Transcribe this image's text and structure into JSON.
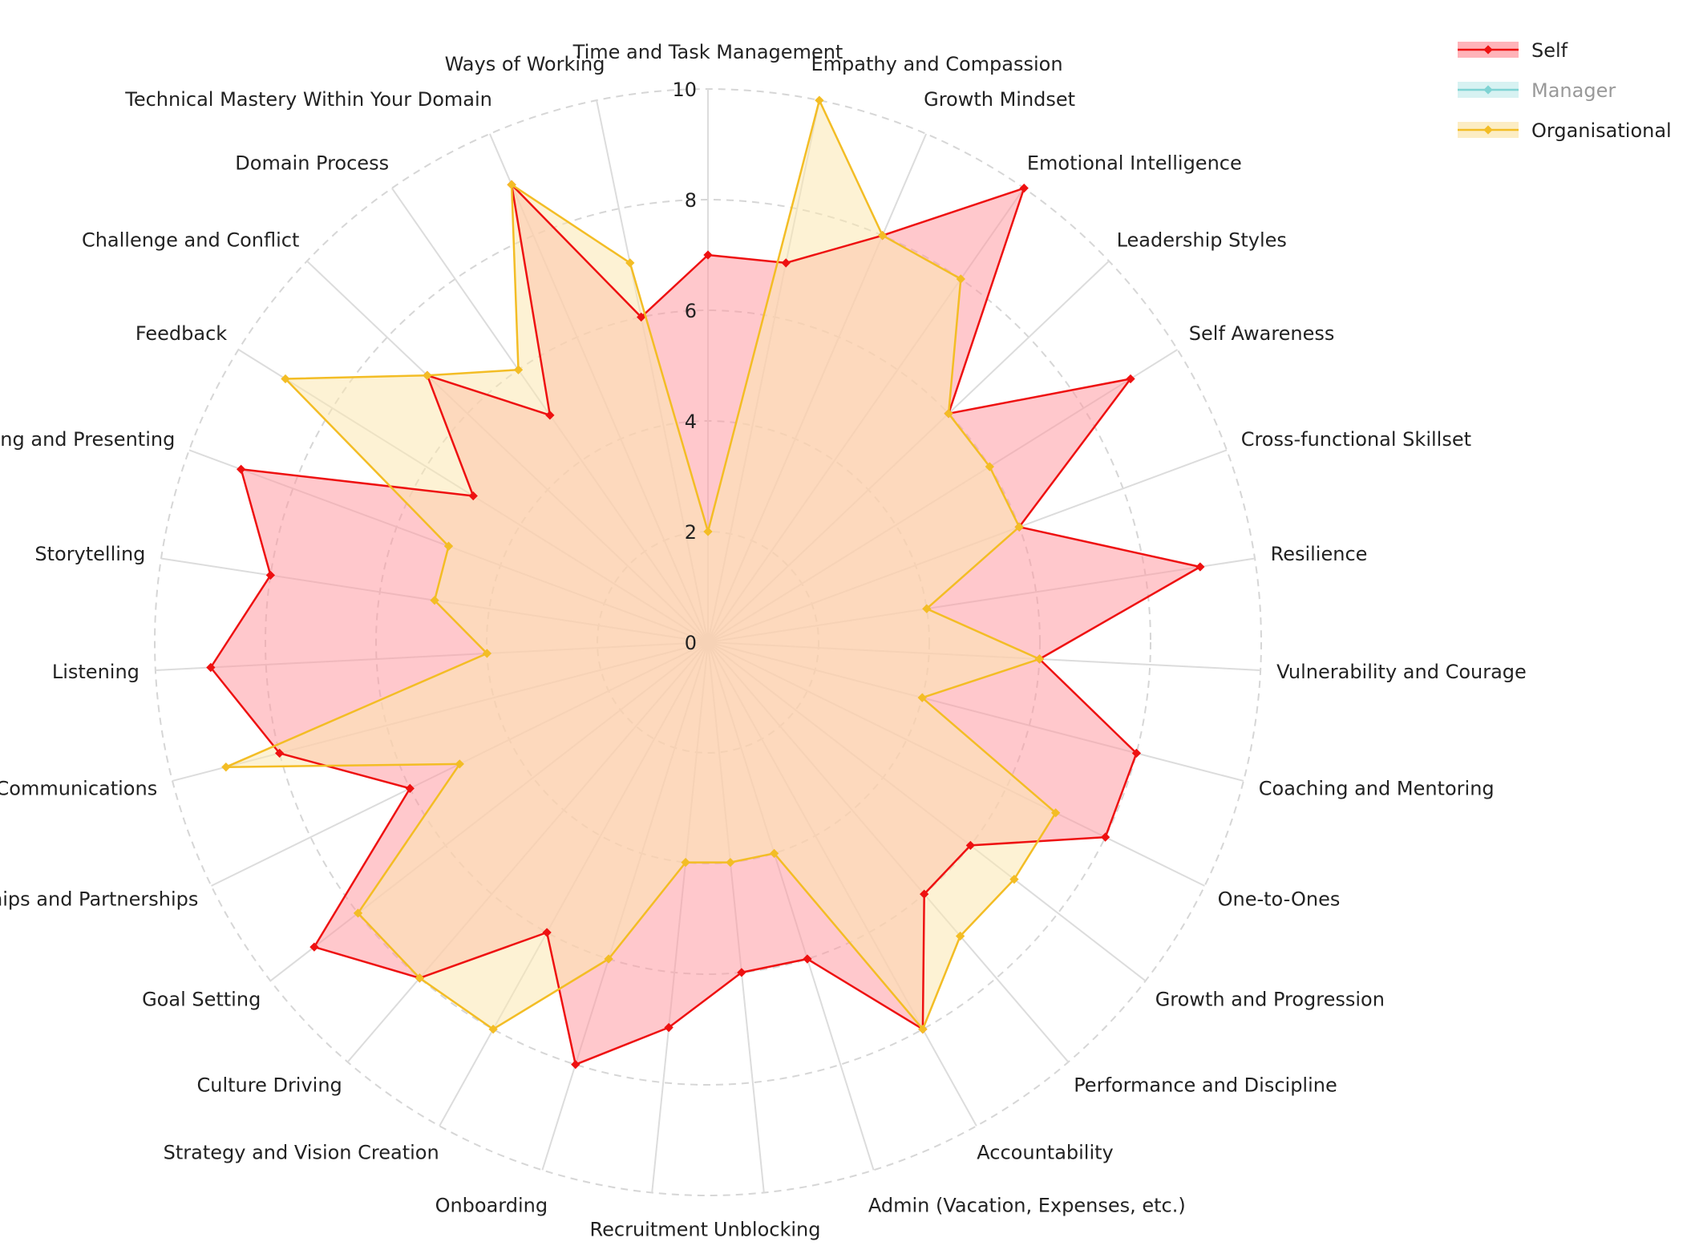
{
  "chart_data": {
    "type": "radar",
    "axes": [
      "Time and Task Management",
      "Empathy and Compassion",
      "Growth Mindset",
      "Emotional Intelligence",
      "Leadership Styles",
      "Self Awareness",
      "Cross-functional Skillset",
      "Resilience",
      "Vulnerability and Courage",
      "Coaching and Mentoring",
      "One-to-Ones",
      "Growth and Progression",
      "Performance and Discipline",
      "Accountability",
      "Admin (Vacation, Expenses, etc.)",
      "Unblocking",
      "Recruitment",
      "Onboarding",
      "Strategy and Vision Creation",
      "Culture Driving",
      "Goal Setting",
      "Relationships and Partnerships",
      "Written Communications",
      "Listening",
      "Storytelling",
      "Public Speaking and Presenting",
      "Feedback",
      "Challenge and Conflict",
      "Domain Process",
      "Technical Mastery Within Your Domain",
      "Ways of Working"
    ],
    "radial_ticks": [
      "0",
      "2",
      "4",
      "6",
      "8",
      "10"
    ],
    "rmax": 10,
    "series": [
      {
        "name": "Self",
        "color": "#ee1111",
        "fill": "#ff9aa2",
        "visible": true,
        "values": [
          7,
          7,
          8,
          10,
          6,
          9,
          6,
          9,
          6,
          8,
          8,
          6,
          6,
          8,
          6,
          6,
          7,
          8,
          6,
          8,
          9,
          6,
          8,
          9,
          8,
          9,
          5,
          7,
          5,
          9,
          6
        ]
      },
      {
        "name": "Manager",
        "color": "#7fd3d3",
        "fill": "#c9eeee",
        "visible": false,
        "values": []
      },
      {
        "name": "Organisational",
        "color": "#f3bd25",
        "fill": "#fbe7b0",
        "visible": true,
        "values": [
          2,
          10,
          8,
          8,
          6,
          6,
          6,
          4,
          6,
          4,
          7,
          7,
          7,
          8,
          4,
          4,
          4,
          6,
          8,
          8,
          8,
          5,
          9,
          4,
          5,
          5,
          9,
          7,
          6,
          9,
          7
        ]
      }
    ],
    "grid": true,
    "legend_position": "top-right"
  }
}
